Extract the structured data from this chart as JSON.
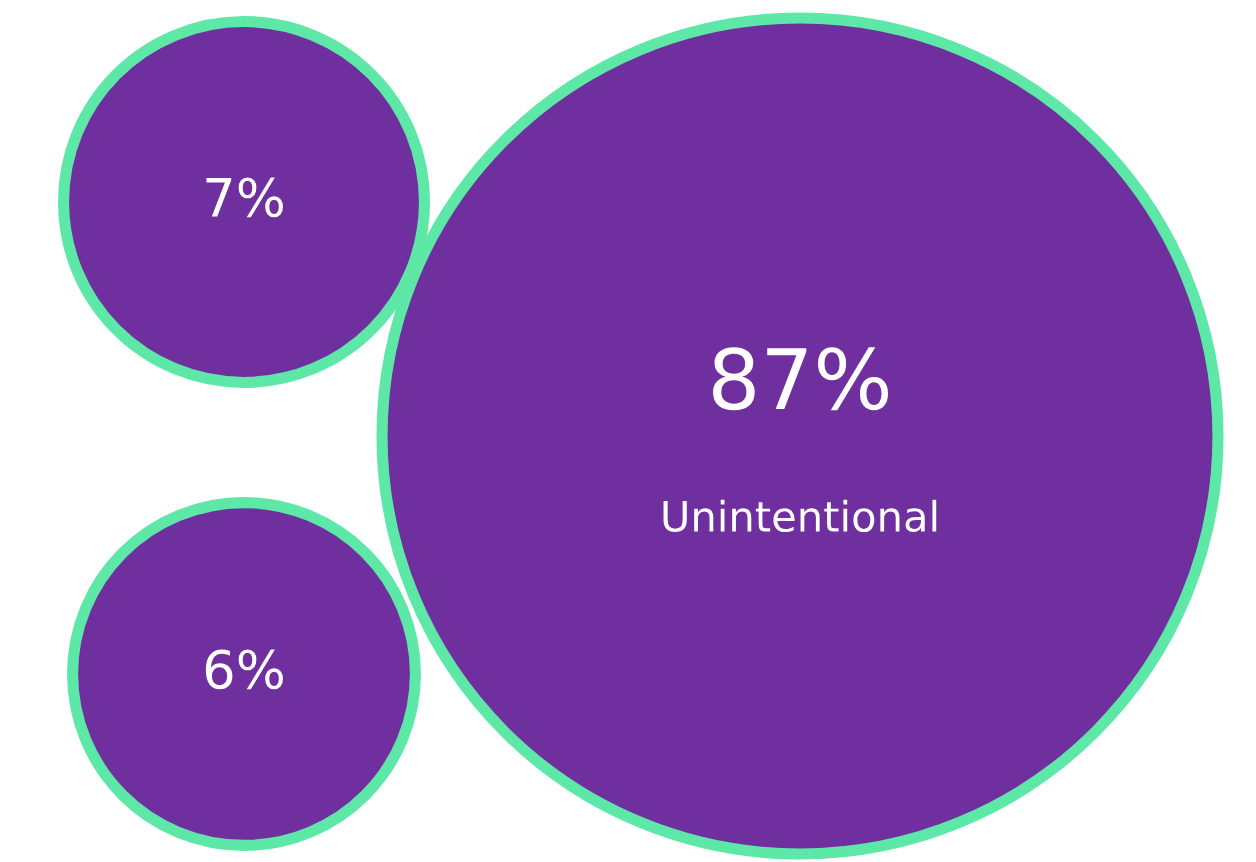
{
  "chart_data": {
    "type": "other",
    "categories": [
      null,
      "Unintentional",
      null
    ],
    "values": [
      7,
      87,
      6
    ],
    "value_labels": [
      "7%",
      "87%",
      "6%"
    ],
    "colors": [
      "#6f2f9f",
      "#6f2f9f",
      "#6f2f9f"
    ]
  }
}
